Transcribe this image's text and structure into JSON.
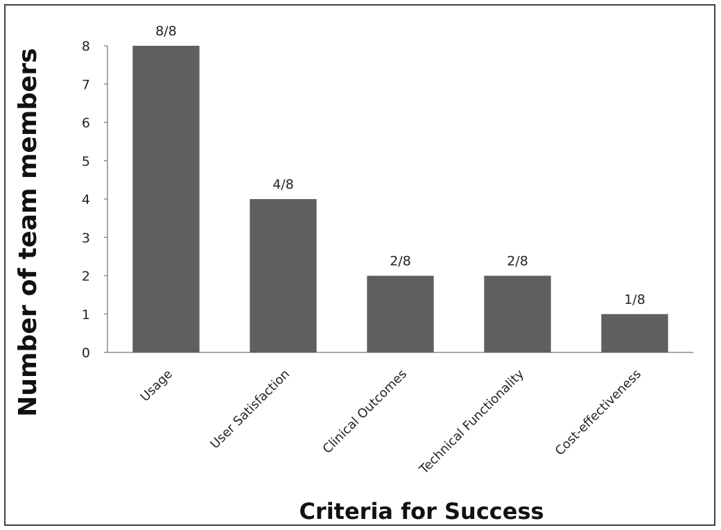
{
  "chart_data": {
    "type": "bar",
    "categories": [
      "Usage",
      "User Satisfaction",
      "Clinical Outcomes",
      "Technical Functionality",
      "Cost-effectiveness"
    ],
    "values": [
      8,
      4,
      2,
      2,
      1
    ],
    "data_labels": [
      "8/8",
      "4/8",
      "2/8",
      "2/8",
      "1/8"
    ],
    "xlabel": "Criteria for Success",
    "ylabel": "Number of team members",
    "ylim": [
      0,
      8
    ],
    "yticks": [
      0,
      1,
      2,
      3,
      4,
      5,
      6,
      7,
      8
    ],
    "grid": false,
    "bar_color": "#5f5f5f",
    "axis_color": "#8c8c8c"
  }
}
